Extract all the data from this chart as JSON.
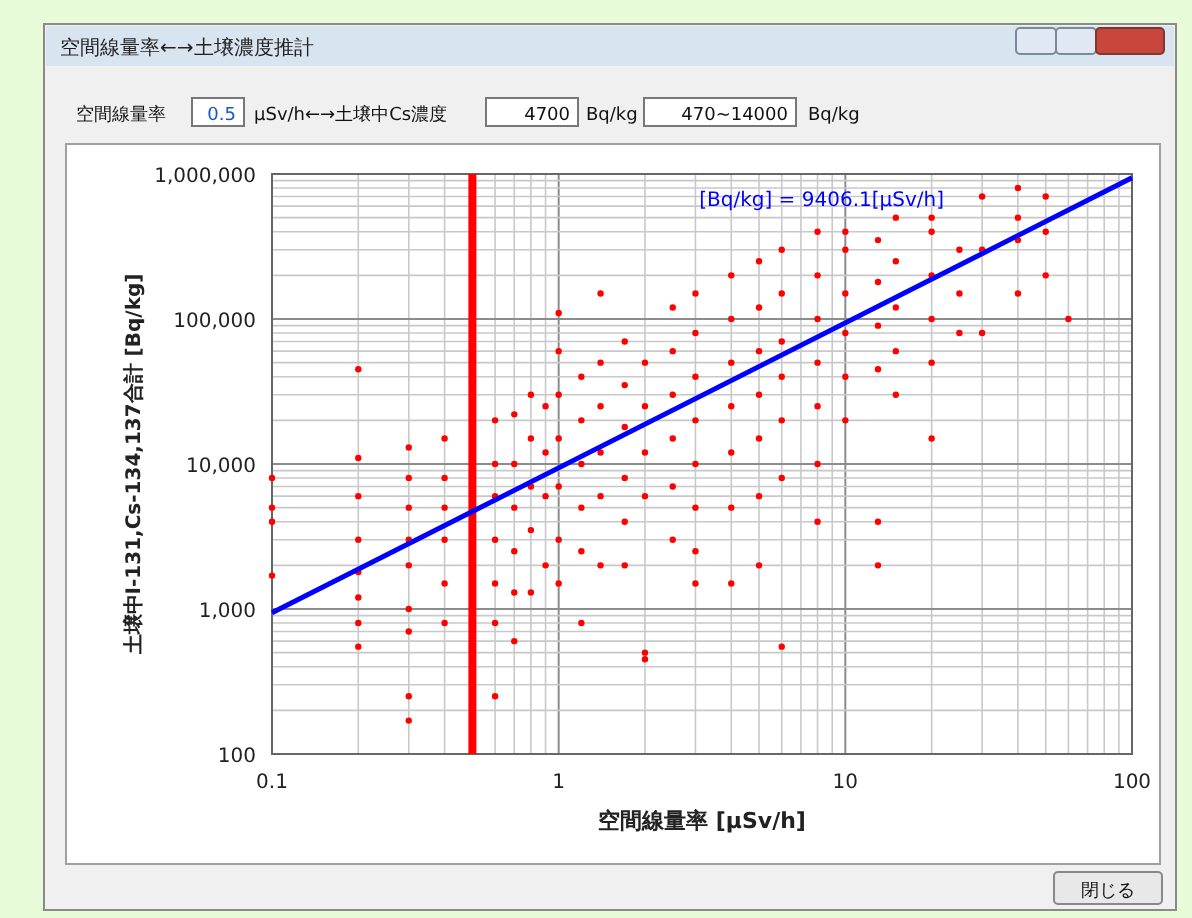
{
  "chart_data": {
    "type": "scatter",
    "title": "空間線量率←→土壌濃度推計",
    "xlabel": "空間線量率 [μSv/h]",
    "ylabel": "土壌中I-131,Cs-134,137合計 [Bq/kg]",
    "log": "xy",
    "grid": true,
    "xlim": [
      0.1,
      100
    ],
    "ylim": [
      100,
      1000000
    ],
    "xticks": [
      0.1,
      1,
      10,
      100
    ],
    "yticks": [
      {
        "value": 100,
        "label": "100"
      },
      {
        "value": 1000,
        "label": "1,000"
      },
      {
        "value": 10000,
        "label": "10,000"
      },
      {
        "value": 100000,
        "label": "100,000"
      },
      {
        "value": 1000000,
        "label": "1,000,000"
      }
    ],
    "ref_lines": [
      {
        "axis": "x",
        "value": 0.5,
        "color": "#ff0000"
      }
    ],
    "series": [
      {
        "color": "#ff0000",
        "marker": "circle",
        "x": [
          0.1,
          0.1,
          0.1,
          0.1,
          0.2,
          0.2,
          0.2,
          0.2,
          0.2,
          0.2,
          0.2,
          0.2,
          0.3,
          0.3,
          0.3,
          0.3,
          0.3,
          0.3,
          0.3,
          0.3,
          0.3,
          0.4,
          0.4,
          0.4,
          0.4,
          0.4,
          0.4,
          0.6,
          0.6,
          0.6,
          0.6,
          0.6,
          0.6,
          0.6,
          0.7,
          0.7,
          0.7,
          0.7,
          0.7,
          0.7,
          0.8,
          0.8,
          0.8,
          0.8,
          0.8,
          0.9,
          0.9,
          0.9,
          0.9,
          1,
          1,
          1,
          1,
          1,
          1,
          1,
          1.2,
          1.2,
          1.2,
          1.2,
          1.2,
          1.2,
          1.4,
          1.4,
          1.4,
          1.4,
          1.4,
          1.4,
          1.7,
          1.7,
          1.7,
          1.7,
          1.7,
          1.7,
          2,
          2,
          2,
          2,
          2,
          2,
          2.5,
          2.5,
          2.5,
          2.5,
          2.5,
          2.5,
          3,
          3,
          3,
          3,
          3,
          3,
          3,
          3,
          4,
          4,
          4,
          4,
          4,
          4,
          4,
          5,
          5,
          5,
          5,
          5,
          5,
          5,
          6,
          6,
          6,
          6,
          6,
          6,
          6,
          8,
          8,
          8,
          8,
          8,
          8,
          8,
          10,
          10,
          10,
          10,
          10,
          10,
          13,
          13,
          13,
          13,
          13,
          13,
          15,
          15,
          15,
          15,
          15,
          20,
          20,
          20,
          20,
          20,
          20,
          25,
          25,
          25,
          30,
          30,
          30,
          40,
          40,
          40,
          40,
          50,
          50,
          50,
          60
        ],
        "values": [
          8000,
          5000,
          4000,
          1700,
          45000,
          11000,
          6000,
          3000,
          1800,
          1200,
          800,
          550,
          13000,
          8000,
          5000,
          3000,
          2000,
          1000,
          700,
          250,
          170,
          15000,
          8000,
          5000,
          3000,
          1500,
          800,
          20000,
          10000,
          6000,
          3000,
          1500,
          800,
          250,
          22000,
          10000,
          5000,
          2500,
          1300,
          600,
          30000,
          15000,
          7000,
          3500,
          1300,
          25000,
          12000,
          6000,
          2000,
          110000,
          60000,
          30000,
          15000,
          7000,
          3000,
          1500,
          40000,
          20000,
          10000,
          5000,
          2500,
          800,
          150000,
          50000,
          25000,
          12000,
          6000,
          2000,
          70000,
          35000,
          18000,
          8000,
          4000,
          2000,
          50000,
          25000,
          12000,
          6000,
          500,
          450,
          120000,
          60000,
          30000,
          15000,
          7000,
          3000,
          150000,
          80000,
          40000,
          20000,
          10000,
          5000,
          2500,
          1500,
          200000,
          100000,
          50000,
          25000,
          12000,
          5000,
          1500,
          250000,
          120000,
          60000,
          30000,
          15000,
          6000,
          2000,
          300000,
          150000,
          70000,
          40000,
          20000,
          8000,
          550,
          400000,
          200000,
          100000,
          50000,
          25000,
          10000,
          4000,
          400000,
          300000,
          150000,
          80000,
          40000,
          20000,
          350000,
          180000,
          90000,
          45000,
          4000,
          2000,
          500000,
          250000,
          120000,
          60000,
          30000,
          500000,
          400000,
          200000,
          100000,
          50000,
          15000,
          300000,
          150000,
          80000,
          700000,
          300000,
          80000,
          800000,
          500000,
          350000,
          150000,
          700000,
          400000,
          200000,
          100000
        ]
      },
      {
        "type": "line",
        "color": "#0000ff",
        "x": [
          0.1,
          100
        ],
        "values": [
          940.61,
          940610
        ]
      }
    ],
    "annotations": [
      "空間線量率",
      "0.5",
      "μSv/h←→土壌中Cs濃度",
      "4700",
      "Bq/kg",
      "470~14000",
      "Bq/kg",
      "[Bq/kg] = 9406.1[μSv/h]",
      "閉じる"
    ]
  }
}
